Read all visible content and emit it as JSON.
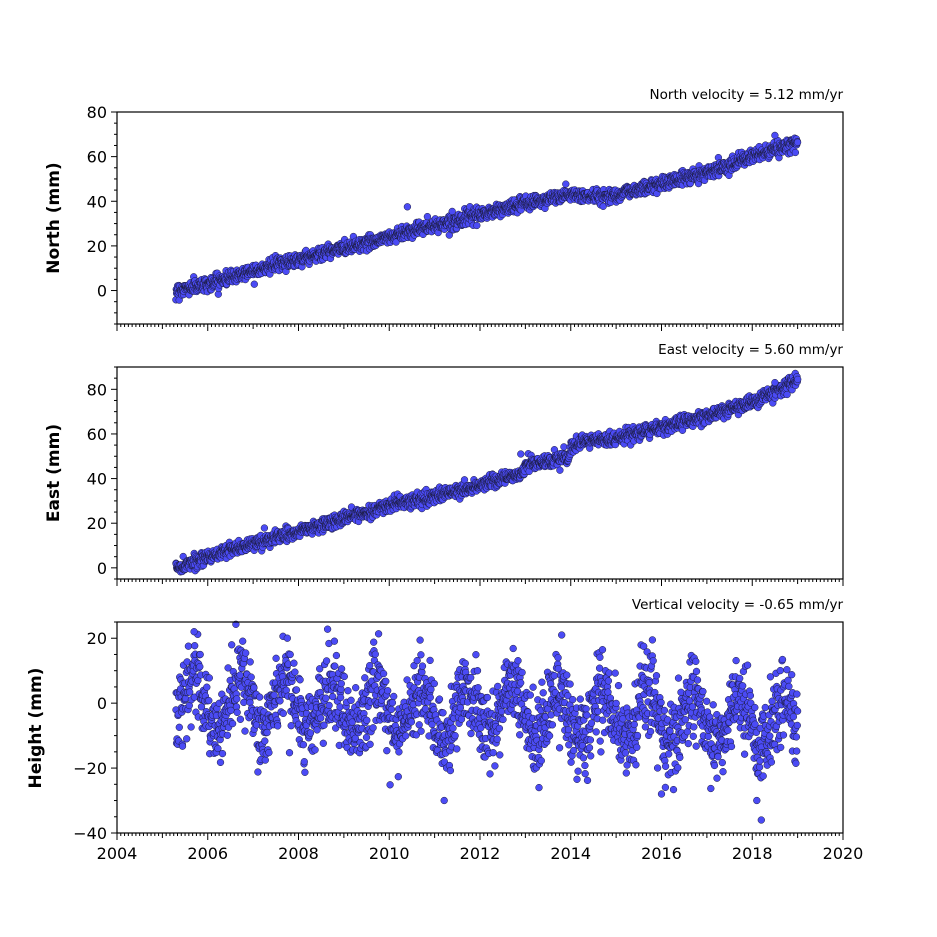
{
  "chart_data": [
    {
      "type": "scatter",
      "velocity_label": "North velocity = 5.12 mm/yr",
      "ylabel": "North (mm)",
      "ylim": [
        -15,
        80
      ],
      "yticks": [
        0,
        20,
        40,
        60,
        80
      ],
      "xlim": [
        2004,
        2020
      ],
      "x_ticks_labeled": false,
      "marker_color": "#4b4bf5",
      "trend": {
        "x": [
          2005.3,
          2006.0,
          2007.0,
          2008.0,
          2009.0,
          2010.0,
          2010.5,
          2011.0,
          2012.0,
          2013.0,
          2013.5,
          2014.0,
          2014.5,
          2015.0,
          2016.0,
          2017.0,
          2018.0,
          2019.0
        ],
        "y": [
          0,
          3,
          9,
          14,
          19,
          24,
          27,
          29,
          34,
          39,
          41,
          43,
          42,
          43,
          48,
          53,
          60,
          66
        ]
      },
      "noise_amplitude": 1.5,
      "seasonal_amplitude": 0,
      "outliers": [
        {
          "x": 2010.4,
          "y": 37.5
        },
        {
          "x": 2018.5,
          "y": 69.5
        }
      ]
    },
    {
      "type": "scatter",
      "velocity_label": "East velocity = 5.60 mm/yr",
      "ylabel": "East (mm)",
      "ylim": [
        -5,
        90
      ],
      "yticks": [
        0,
        20,
        40,
        60,
        80
      ],
      "xlim": [
        2004,
        2020
      ],
      "x_ticks_labeled": false,
      "marker_color": "#4b4bf5",
      "trend": {
        "x": [
          2005.3,
          2006.0,
          2007.0,
          2008.0,
          2009.0,
          2010.0,
          2011.0,
          2012.0,
          2012.8,
          2012.95,
          2013.0,
          2013.5,
          2013.95,
          2014.0,
          2014.2,
          2015.0,
          2016.0,
          2017.0,
          2018.0,
          2019.0
        ],
        "y": [
          0,
          5,
          11,
          16,
          22,
          28,
          32,
          37,
          42,
          42.5,
          46,
          48,
          49,
          53,
          56,
          58,
          63,
          68,
          74,
          84
        ]
      },
      "noise_amplitude": 1.5,
      "seasonal_amplitude": 0,
      "outliers": [
        {
          "x": 2012.9,
          "y": 51
        },
        {
          "x": 2018.5,
          "y": 83
        }
      ]
    },
    {
      "type": "scatter",
      "velocity_label": "Vertical velocity = -0.65 mm/yr",
      "ylabel": "Height (mm)",
      "ylim": [
        -40,
        25
      ],
      "yticks": [
        -40,
        -20,
        0,
        20
      ],
      "xlim": [
        2004,
        2020
      ],
      "xticks": [
        2004,
        2006,
        2008,
        2010,
        2012,
        2014,
        2016,
        2018,
        2020
      ],
      "x_ticks_labeled": true,
      "marker_color": "#4b4bf5",
      "trend": {
        "x": [
          2005.3,
          2019.0
        ],
        "y": [
          0,
          -6
        ]
      },
      "noise_amplitude": 6,
      "seasonal_amplitude": 8,
      "outliers": [
        {
          "x": 2005.7,
          "y": 22
        },
        {
          "x": 2013.8,
          "y": 21
        },
        {
          "x": 2018.2,
          "y": -36
        },
        {
          "x": 2018.1,
          "y": -30
        },
        {
          "x": 2016.0,
          "y": -28
        },
        {
          "x": 2013.3,
          "y": -26
        },
        {
          "x": 2015.8,
          "y": 19.5
        }
      ]
    }
  ]
}
